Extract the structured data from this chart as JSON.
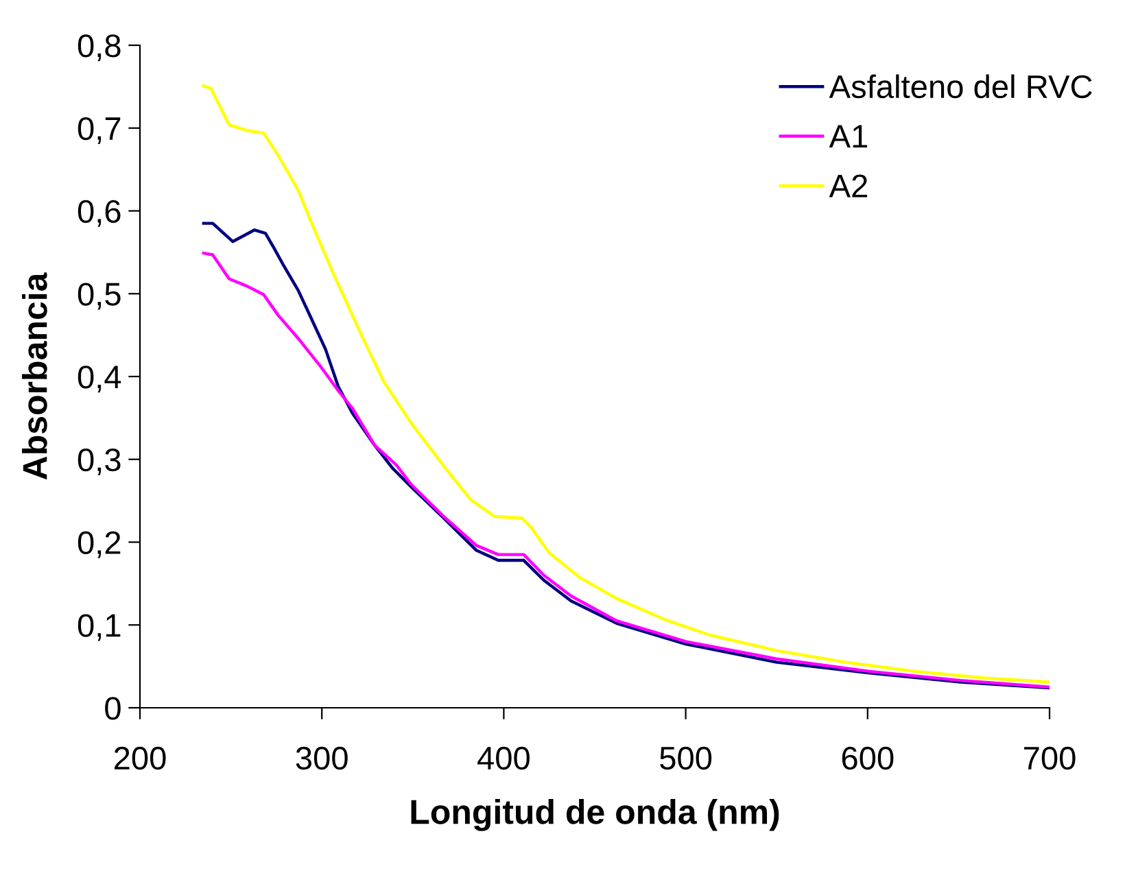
{
  "chart_data": {
    "type": "line",
    "xlabel": "Longitud de onda (nm)",
    "ylabel": "Absorbancia",
    "xlim": [
      200,
      700
    ],
    "xticks": [
      200,
      300,
      400,
      500,
      600,
      700
    ],
    "ylim": [
      0,
      0.8
    ],
    "yticks": [
      {
        "value": 0,
        "label": "0"
      },
      {
        "value": 0.1,
        "label": "0,1"
      },
      {
        "value": 0.2,
        "label": "0,2"
      },
      {
        "value": 0.3,
        "label": "0,3"
      },
      {
        "value": 0.4,
        "label": "0,4"
      },
      {
        "value": 0.5,
        "label": "0,5"
      },
      {
        "value": 0.6,
        "label": "0,6"
      },
      {
        "value": 0.7,
        "label": "0,7"
      },
      {
        "value": 0.8,
        "label": "0,8"
      }
    ],
    "grid": false,
    "legend": "top right",
    "marker": "none",
    "line_style": "solid",
    "series": [
      {
        "name": "Asfalteno del RVC",
        "color": "#000080",
        "x": [
          235,
          240,
          251,
          263,
          269,
          274,
          279,
          287,
          294,
          302,
          309,
          317,
          329,
          339,
          349,
          367,
          385,
          397,
          411,
          422,
          437,
          462,
          500,
          550,
          601,
          651,
          700
        ],
        "values": [
          0.585,
          0.585,
          0.563,
          0.577,
          0.573,
          0.554,
          0.534,
          0.504,
          0.471,
          0.433,
          0.388,
          0.355,
          0.317,
          0.289,
          0.267,
          0.229,
          0.19,
          0.178,
          0.178,
          0.154,
          0.129,
          0.102,
          0.077,
          0.055,
          0.042,
          0.031,
          0.024
        ]
      },
      {
        "name": "A1",
        "color": "#ff00ff",
        "x": [
          235,
          240,
          249,
          259,
          268,
          276,
          287,
          299,
          309,
          317,
          329,
          341,
          349,
          367,
          385,
          397,
          411,
          422,
          437,
          462,
          500,
          550,
          601,
          651,
          700
        ],
        "values": [
          0.549,
          0.547,
          0.518,
          0.509,
          0.499,
          0.474,
          0.446,
          0.413,
          0.383,
          0.361,
          0.317,
          0.293,
          0.27,
          0.231,
          0.196,
          0.185,
          0.185,
          0.16,
          0.135,
          0.105,
          0.08,
          0.059,
          0.044,
          0.033,
          0.025
        ]
      },
      {
        "name": "A2",
        "color": "#ffff00",
        "x": [
          235,
          239,
          249,
          259,
          268,
          276,
          287,
          294,
          307,
          322,
          334,
          349,
          367,
          372,
          382,
          395,
          410,
          415,
          425,
          442,
          462,
          488,
          513,
          550,
          588,
          626,
          664,
          700
        ],
        "values": [
          0.751,
          0.748,
          0.704,
          0.697,
          0.694,
          0.667,
          0.625,
          0.587,
          0.521,
          0.449,
          0.394,
          0.344,
          0.292,
          0.278,
          0.251,
          0.231,
          0.229,
          0.218,
          0.187,
          0.157,
          0.132,
          0.107,
          0.088,
          0.069,
          0.055,
          0.044,
          0.036,
          0.031
        ]
      }
    ]
  }
}
